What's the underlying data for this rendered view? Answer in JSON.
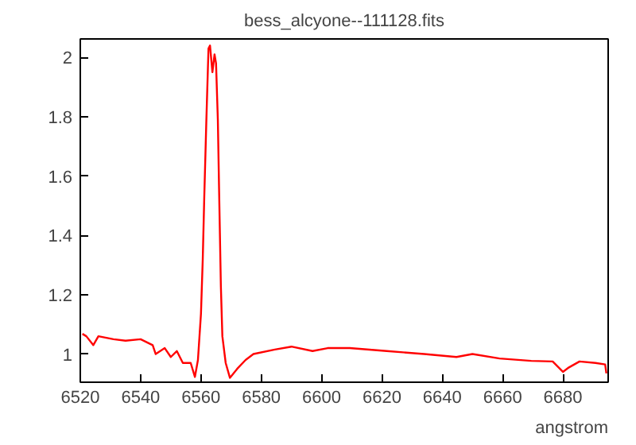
{
  "chart_data": {
    "type": "line",
    "title": "bess_alcyone--111128.fits",
    "xlabel": "angstrom",
    "x": [
      6520.7,
      6522,
      6524.3,
      6526,
      6531,
      6535,
      6540,
      6544,
      6545,
      6548,
      6550,
      6552,
      6554,
      6556.6,
      6558,
      6559,
      6560,
      6560.6,
      6561.1,
      6561.8,
      6562.5,
      6563,
      6563.8,
      6564.5,
      6565,
      6565.6,
      6566,
      6566.6,
      6567.1,
      6568.2,
      6569.6,
      6572,
      6574.8,
      6577.4,
      6584.5,
      6590,
      6597,
      6602,
      6609.3,
      6621.6,
      6634,
      6644.7,
      6650,
      6659,
      6669.5,
      6676.6,
      6680,
      6682,
      6685.5,
      6690.8,
      6694,
      6694.4
    ],
    "series": [
      {
        "color": "#ff0000",
        "values": [
          1.068,
          1.06,
          1.03,
          1.06,
          1.05,
          1.045,
          1.05,
          1.03,
          1.0,
          1.02,
          0.99,
          1.01,
          0.97,
          0.97,
          0.923,
          0.98,
          1.135,
          1.32,
          1.53,
          1.79,
          2.03,
          2.04,
          1.95,
          2.01,
          1.98,
          1.79,
          1.56,
          1.23,
          1.06,
          0.97,
          0.92,
          0.95,
          0.98,
          1.0,
          1.015,
          1.025,
          1.01,
          1.02,
          1.02,
          1.01,
          1.0,
          0.99,
          1.0,
          0.985,
          0.977,
          0.975,
          0.94,
          0.955,
          0.975,
          0.97,
          0.965,
          0.935
        ]
      }
    ],
    "xlim": [
      6520,
      6695
    ],
    "ylim": [
      0.905,
      2.062
    ],
    "xticks": [
      6520,
      6540,
      6560,
      6580,
      6600,
      6620,
      6640,
      6660,
      6680
    ],
    "yticks": [
      1,
      1.2,
      1.4,
      1.6,
      1.8,
      2
    ],
    "grid": false,
    "marker": "none",
    "line_style": "solid"
  }
}
